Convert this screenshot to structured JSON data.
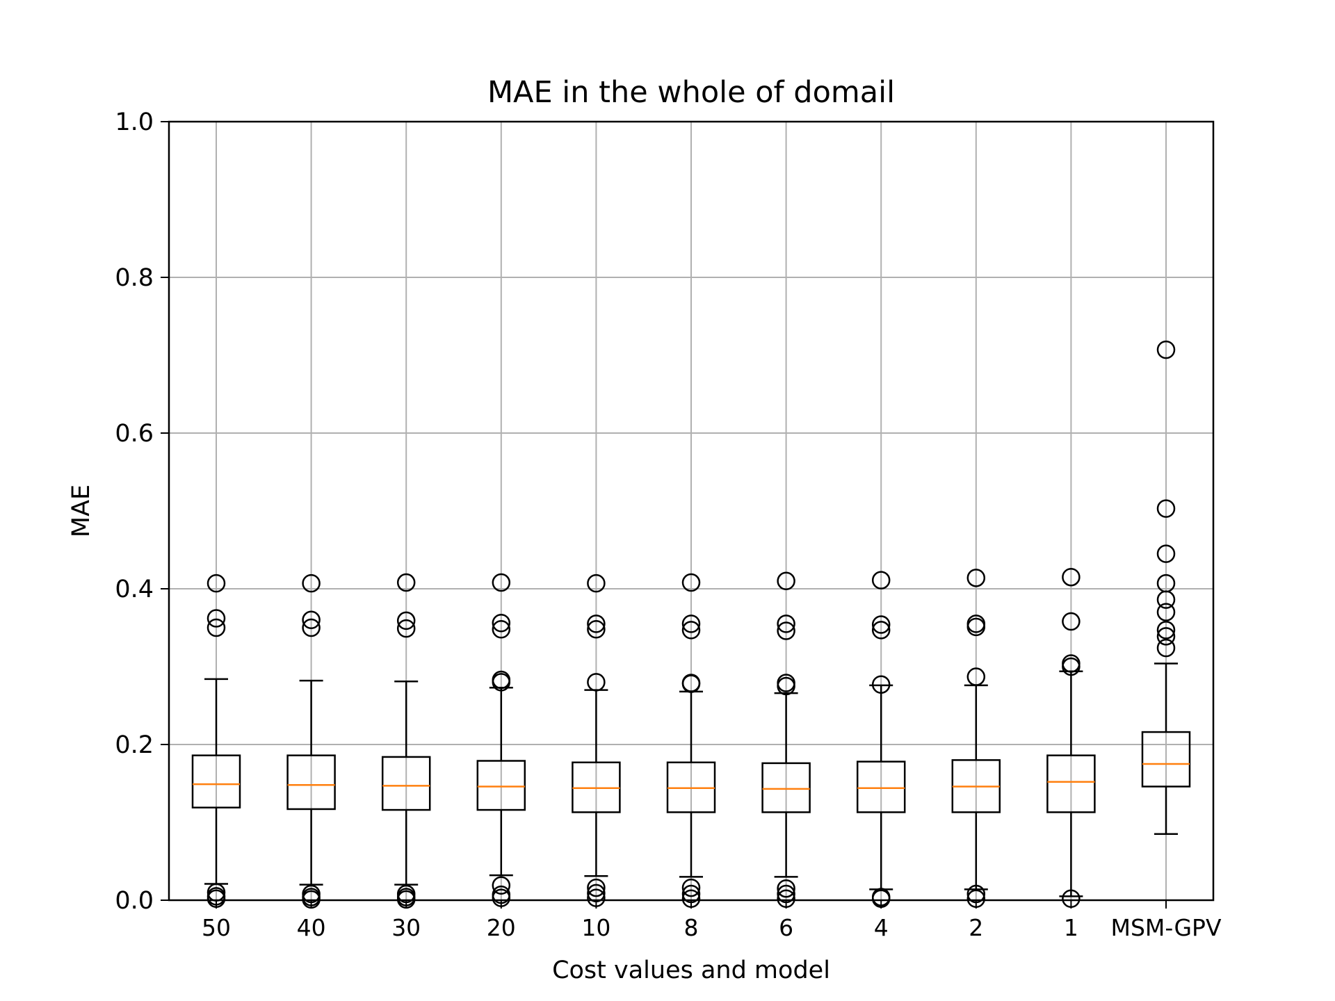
{
  "chart_data": {
    "type": "box",
    "title": "MAE in the whole of domail",
    "xlabel": "Cost values and model",
    "ylabel": "MAE",
    "ylim": [
      0.0,
      1.0
    ],
    "yticks": [
      "0.0",
      "0.2",
      "0.4",
      "0.6",
      "0.8",
      "1.0"
    ],
    "grid": true,
    "colors": {
      "box": "#000000",
      "median": "#ff7f0e",
      "grid": "#b0b0b0"
    },
    "categories": [
      "50",
      "40",
      "30",
      "20",
      "10",
      "8",
      "6",
      "4",
      "2",
      "1",
      "MSM-GPV"
    ],
    "boxes": [
      {
        "whislo": 0.021,
        "q1": 0.119,
        "med": 0.149,
        "q3": 0.186,
        "whishi": 0.284,
        "fliers": [
          0.407,
          0.362,
          0.35,
          0.01,
          0.005,
          0.002
        ]
      },
      {
        "whislo": 0.02,
        "q1": 0.117,
        "med": 0.148,
        "q3": 0.186,
        "whishi": 0.282,
        "fliers": [
          0.407,
          0.36,
          0.35,
          0.008,
          0.004,
          0.001
        ]
      },
      {
        "whislo": 0.02,
        "q1": 0.116,
        "med": 0.147,
        "q3": 0.184,
        "whishi": 0.281,
        "fliers": [
          0.408,
          0.359,
          0.349,
          0.008,
          0.004,
          0.001
        ]
      },
      {
        "whislo": 0.032,
        "q1": 0.116,
        "med": 0.146,
        "q3": 0.179,
        "whishi": 0.273,
        "fliers": [
          0.408,
          0.356,
          0.348,
          0.283,
          0.28,
          0.019,
          0.007,
          0.003
        ]
      },
      {
        "whislo": 0.031,
        "q1": 0.113,
        "med": 0.144,
        "q3": 0.177,
        "whishi": 0.27,
        "fliers": [
          0.407,
          0.355,
          0.348,
          0.28,
          0.016,
          0.009,
          0.003
        ]
      },
      {
        "whislo": 0.03,
        "q1": 0.113,
        "med": 0.144,
        "q3": 0.177,
        "whishi": 0.268,
        "fliers": [
          0.408,
          0.355,
          0.347,
          0.279,
          0.278,
          0.016,
          0.008,
          0.002
        ]
      },
      {
        "whislo": 0.03,
        "q1": 0.113,
        "med": 0.143,
        "q3": 0.176,
        "whishi": 0.266,
        "fliers": [
          0.41,
          0.355,
          0.346,
          0.279,
          0.275,
          0.015,
          0.008,
          0.002
        ]
      },
      {
        "whislo": 0.014,
        "q1": 0.113,
        "med": 0.144,
        "q3": 0.178,
        "whishi": 0.276,
        "fliers": [
          0.411,
          0.354,
          0.347,
          0.277,
          0.004,
          0.002
        ]
      },
      {
        "whislo": 0.014,
        "q1": 0.113,
        "med": 0.146,
        "q3": 0.18,
        "whishi": 0.276,
        "fliers": [
          0.414,
          0.355,
          0.351,
          0.287,
          0.008,
          0.002
        ]
      },
      {
        "whislo": 0.005,
        "q1": 0.113,
        "med": 0.152,
        "q3": 0.186,
        "whishi": 0.294,
        "fliers": [
          0.415,
          0.358,
          0.304,
          0.3,
          0.002
        ]
      },
      {
        "whislo": 0.085,
        "q1": 0.146,
        "med": 0.175,
        "q3": 0.216,
        "whishi": 0.304,
        "fliers": [
          0.707,
          0.503,
          0.445,
          0.407,
          0.386,
          0.37,
          0.347,
          0.339,
          0.324
        ]
      }
    ]
  }
}
